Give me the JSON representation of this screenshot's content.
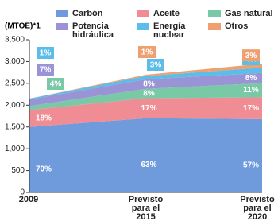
{
  "chart_data": {
    "type": "stacked-area",
    "y_label": "(MTOE)*1",
    "categories": [
      "2009",
      "Previsto para el 2015",
      "Previsto para el 2020"
    ],
    "ylim": [
      0,
      3500
    ],
    "yticks": [
      0,
      500,
      {
        "value": 1000,
        "label": "1,000"
      },
      {
        "value": 1500,
        "label": "1,500"
      },
      {
        "value": 2000,
        "label": "2,000"
      },
      {
        "value": 2500,
        "label": "2,500"
      },
      {
        "value": 3000,
        "label": "3,000"
      },
      {
        "value": 3500,
        "label": "3,500"
      }
    ],
    "grid": false,
    "series": [
      {
        "name": "Carbón",
        "color": "#6f9bdc",
        "values": [
          1500,
          1700,
          1680
        ],
        "value_labels": [
          "70%",
          "63%",
          "57%"
        ]
      },
      {
        "name": "Aceite",
        "color": "#f08c93",
        "values": [
          390,
          460,
          500
        ],
        "value_labels": [
          "18%",
          "17%",
          "17%"
        ]
      },
      {
        "name": "Gas natural",
        "color": "#79c8a6",
        "values": [
          90,
          215,
          325
        ],
        "value_labels": [
          "4%",
          "8%",
          "11%"
        ]
      },
      {
        "name": "Potencia hidráulica",
        "color": "#9a93d6",
        "values": [
          150,
          215,
          235
        ],
        "value_labels": [
          "7%",
          "8%",
          "8%"
        ]
      },
      {
        "name": "Energía nuclear",
        "color": "#5bbde8",
        "values": [
          20,
          80,
          120
        ],
        "value_labels": [
          "1%",
          "3%",
          "4%"
        ]
      },
      {
        "name": "Otros",
        "color": "#f0a070",
        "values": [
          0,
          27,
          90
        ],
        "value_labels": [
          null,
          "1%",
          "3%"
        ]
      }
    ]
  }
}
